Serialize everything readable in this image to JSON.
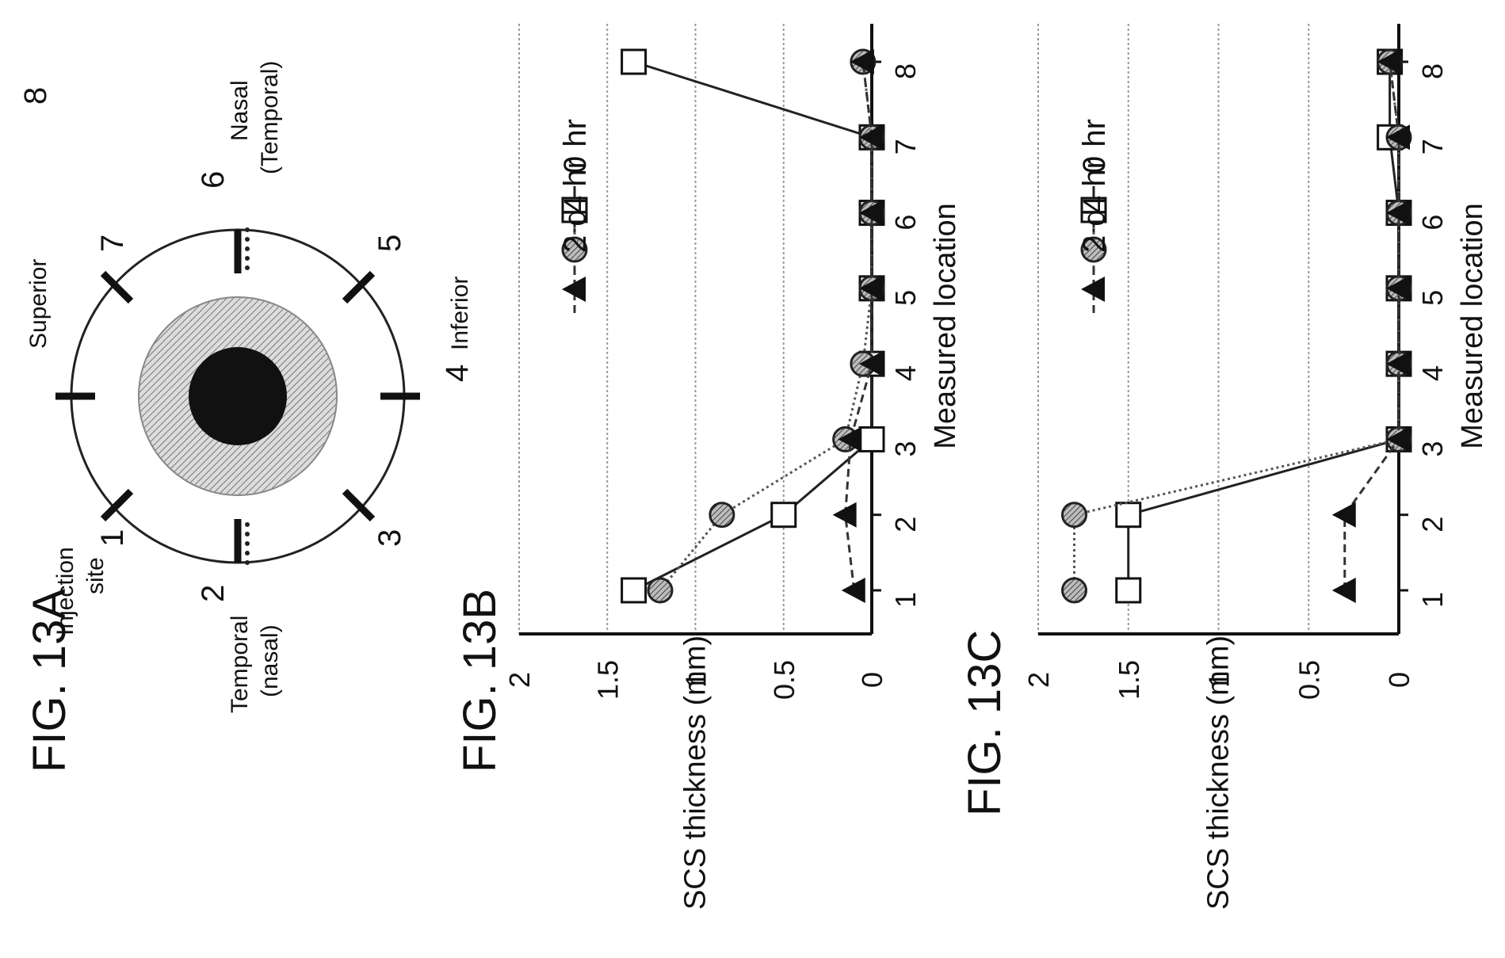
{
  "figures": {
    "fig_a": "FIG. 13A",
    "fig_b": "FIG. 13B",
    "fig_c": "FIG. 13C"
  },
  "diagram": {
    "labels": {
      "superior": "Superior",
      "inferior": "Inferior",
      "injection_line1": "Injection",
      "injection_line2": "site",
      "temporal_line1": "Temporal",
      "temporal_line2": "(nasal)",
      "nasal_line1": "Nasal",
      "nasal_line2": "(Temporal)"
    },
    "location_numbers": [
      "1",
      "2",
      "3",
      "4",
      "5",
      "6",
      "7",
      "8"
    ]
  },
  "chart_data": [
    {
      "type": "line",
      "figure": "FIG. 13B",
      "xlabel": "Measured location",
      "ylabel": "SCS thickness (mm)",
      "x": [
        1,
        2,
        3,
        4,
        5,
        6,
        7,
        8
      ],
      "x_tick_labels": [
        "1",
        "2",
        "3",
        "4",
        "5",
        "6",
        "7",
        "8"
      ],
      "y_tick_labels": [
        "0",
        "0.5",
        "1",
        "1.5",
        "2"
      ],
      "ylim": [
        0,
        2
      ],
      "grid": true,
      "legend_position": "upper-right",
      "series": [
        {
          "name": "0 hr",
          "marker": "square",
          "line": "solid",
          "values": [
            1.35,
            0.5,
            0,
            0,
            0,
            0,
            0,
            1.35
          ]
        },
        {
          "name": "4 hr",
          "marker": "circle",
          "line": "dotted",
          "values": [
            1.2,
            0.85,
            0.15,
            0.05,
            0,
            0,
            0,
            0.05
          ]
        },
        {
          "name": "2 d",
          "marker": "triangle",
          "line": "dashed",
          "values": [
            0.1,
            0.15,
            0.12,
            0,
            0,
            0,
            0,
            0.05
          ]
        }
      ]
    },
    {
      "type": "line",
      "figure": "FIG. 13C",
      "xlabel": "Measured location",
      "ylabel": "SCS thickness (mm)",
      "x": [
        1,
        2,
        3,
        4,
        5,
        6,
        7,
        8
      ],
      "x_tick_labels": [
        "1",
        "2",
        "3",
        "4",
        "5",
        "6",
        "7",
        "8"
      ],
      "y_tick_labels": [
        "0",
        "0.5",
        "1",
        "1.5",
        "2"
      ],
      "ylim": [
        0,
        2
      ],
      "grid": true,
      "legend_position": "upper-right",
      "series": [
        {
          "name": "0 hr",
          "marker": "square",
          "line": "solid",
          "values": [
            1.5,
            1.5,
            0,
            0,
            0,
            0,
            0.05,
            0.05
          ]
        },
        {
          "name": "4 hr",
          "marker": "circle",
          "line": "dotted",
          "values": [
            1.8,
            1.8,
            0,
            0,
            0,
            0,
            0,
            0.05
          ]
        },
        {
          "name": "2 d",
          "marker": "triangle",
          "line": "dashed",
          "values": [
            0.3,
            0.3,
            0,
            0,
            0,
            0,
            0,
            0.05
          ]
        }
      ]
    }
  ]
}
